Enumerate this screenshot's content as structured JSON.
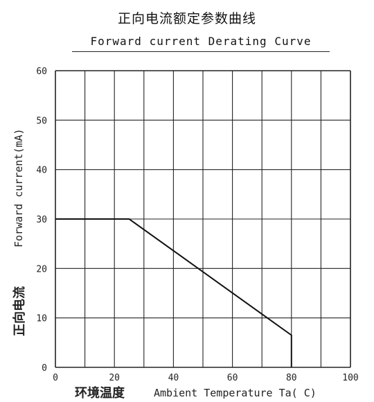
{
  "title_cn": "正向电流额定参数曲线",
  "title_en": "Forward current Derating Curve",
  "chart_data": {
    "type": "line",
    "title": "正向电流额定参数曲线",
    "subtitle": "Forward current Derating Curve",
    "xlabel_cn": "环境温度",
    "xlabel": "Ambient Temperature Ta( C)",
    "ylabel_cn": "正向电流",
    "ylabel": "Forward current(mA)",
    "xlim": [
      0,
      100
    ],
    "ylim": [
      0,
      60
    ],
    "x_ticks": [
      0,
      20,
      40,
      60,
      80,
      100
    ],
    "x_tick_labels": [
      "0",
      "20",
      "40",
      "60",
      "80",
      "100"
    ],
    "y_ticks": [
      0,
      10,
      20,
      30,
      40,
      50,
      60
    ],
    "y_tick_labels": [
      "0",
      "10",
      "20",
      "30",
      "40",
      "50",
      "60"
    ],
    "x_grid_step": 10,
    "y_grid_step": 10,
    "grid": true,
    "series": [
      {
        "x": [
          0,
          25,
          80,
          80
        ],
        "y": [
          30,
          30,
          6.5,
          0
        ]
      }
    ],
    "colors": {
      "line": "#111111",
      "grid": "#222222"
    }
  }
}
